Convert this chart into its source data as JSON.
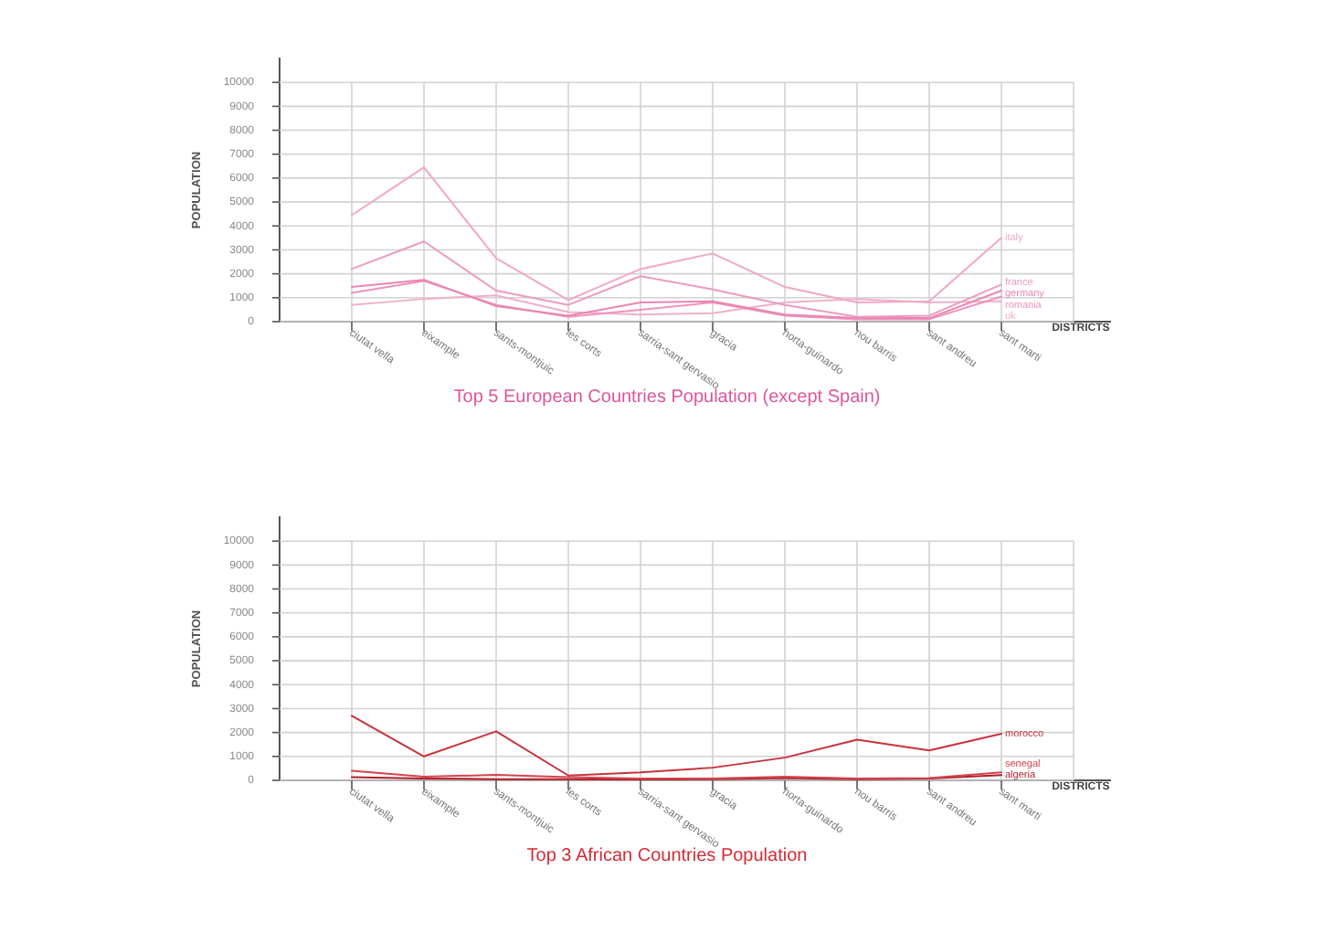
{
  "chart_data": [
    {
      "type": "line",
      "title": "Top 5 European Countries Population (except Spain)",
      "xlabel": "DISTRICTS",
      "ylabel": "POPULATION",
      "categories": [
        "ciutat vella",
        "eixample",
        "sants-montjuic",
        "les corts",
        "sarria-sant gervasio",
        "gracia",
        "horta-guinardo",
        "nou barris",
        "sant andreu",
        "sant marti"
      ],
      "series": [
        {
          "name": "italy",
          "color": "#f2a7c6",
          "values": [
            4450,
            6450,
            2650,
            900,
            2200,
            2850,
            1450,
            800,
            850,
            3500
          ]
        },
        {
          "name": "france",
          "color": "#ec9bbf",
          "values": [
            2200,
            3350,
            1300,
            700,
            1900,
            1350,
            700,
            200,
            250,
            1550
          ]
        },
        {
          "name": "germany",
          "color": "#e886b3",
          "values": [
            1450,
            1750,
            650,
            250,
            800,
            850,
            300,
            150,
            150,
            1300
          ]
        },
        {
          "name": "romania",
          "color": "#ef93bd",
          "values": [
            1200,
            1700,
            700,
            200,
            500,
            800,
            250,
            100,
            100,
            1050
          ]
        },
        {
          "name": "uk",
          "color": "#f0b0cc",
          "values": [
            700,
            950,
            1100,
            400,
            300,
            350,
            800,
            950,
            800,
            850
          ]
        }
      ],
      "ylim": [
        0,
        11000
      ],
      "yticks": [
        0,
        1000,
        2000,
        3000,
        4000,
        5000,
        6000,
        7000,
        8000,
        9000,
        10000
      ],
      "grid": true
    },
    {
      "type": "line",
      "title": "Top 3 African Countries Population",
      "xlabel": "DISTRICTS",
      "ylabel": "POPULATION",
      "categories": [
        "ciutat vella",
        "eixample",
        "sants-montjuic",
        "les corts",
        "sarria-sant gervasio",
        "gracia",
        "horta-guinardo",
        "nou barris",
        "sant andreu",
        "sant marti"
      ],
      "series": [
        {
          "name": "morocco",
          "color": "#c8323c",
          "values": [
            2700,
            1000,
            2050,
            200,
            330,
            530,
            950,
            1700,
            1250,
            1950
          ]
        },
        {
          "name": "senegal",
          "color": "#d4444d",
          "values": [
            400,
            150,
            230,
            130,
            80,
            80,
            150,
            80,
            100,
            330
          ]
        },
        {
          "name": "algeria",
          "color": "#b01e28",
          "values": [
            130,
            80,
            50,
            50,
            30,
            50,
            100,
            50,
            80,
            220
          ]
        }
      ],
      "ylim": [
        0,
        11000
      ],
      "yticks": [
        0,
        1000,
        2000,
        3000,
        4000,
        5000,
        6000,
        7000,
        8000,
        9000,
        10000
      ],
      "grid": true
    }
  ]
}
